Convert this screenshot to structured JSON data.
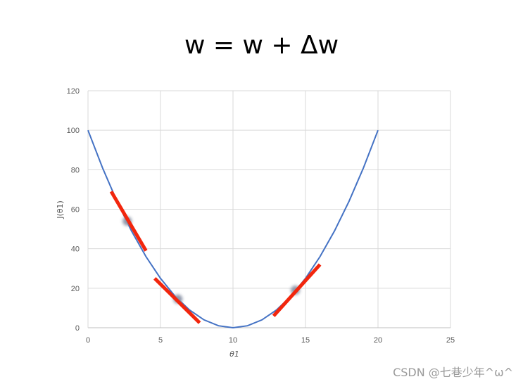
{
  "title": "w = w + Δw",
  "watermark": "CSDN @七巷少年^ω^",
  "chart_data": {
    "type": "line",
    "xlabel": "θ1",
    "ylabel": "J(θ1)",
    "xlim": [
      0,
      25
    ],
    "ylim": [
      0,
      120
    ],
    "xticks": [
      0,
      5,
      10,
      15,
      20,
      25
    ],
    "yticks": [
      0,
      20,
      40,
      60,
      80,
      100,
      120
    ],
    "grid": true,
    "curve": {
      "function": "(x-10)^2",
      "color": "#4472c4",
      "x": [
        0,
        1,
        2,
        3,
        4,
        5,
        6,
        7,
        8,
        9,
        10,
        11,
        12,
        13,
        14,
        15,
        16,
        17,
        18,
        19,
        20
      ],
      "y": [
        100,
        81,
        64,
        49,
        36,
        25,
        16,
        9,
        4,
        1,
        0,
        1,
        4,
        9,
        16,
        25,
        36,
        49,
        64,
        81,
        100
      ]
    },
    "points": [
      {
        "x": 2.7,
        "y": 54
      },
      {
        "x": 6.2,
        "y": 14.5
      },
      {
        "x": 14.3,
        "y": 19
      }
    ],
    "point_color": "#8a93a6",
    "tangents": [
      {
        "x1": 1.6,
        "y1": 69,
        "x2": 4.0,
        "y2": 39
      },
      {
        "x1": 4.6,
        "y1": 25,
        "x2": 7.7,
        "y2": 2.5
      },
      {
        "x1": 12.8,
        "y1": 6,
        "x2": 16.0,
        "y2": 32
      }
    ],
    "tangent_color": "#f2260d"
  }
}
